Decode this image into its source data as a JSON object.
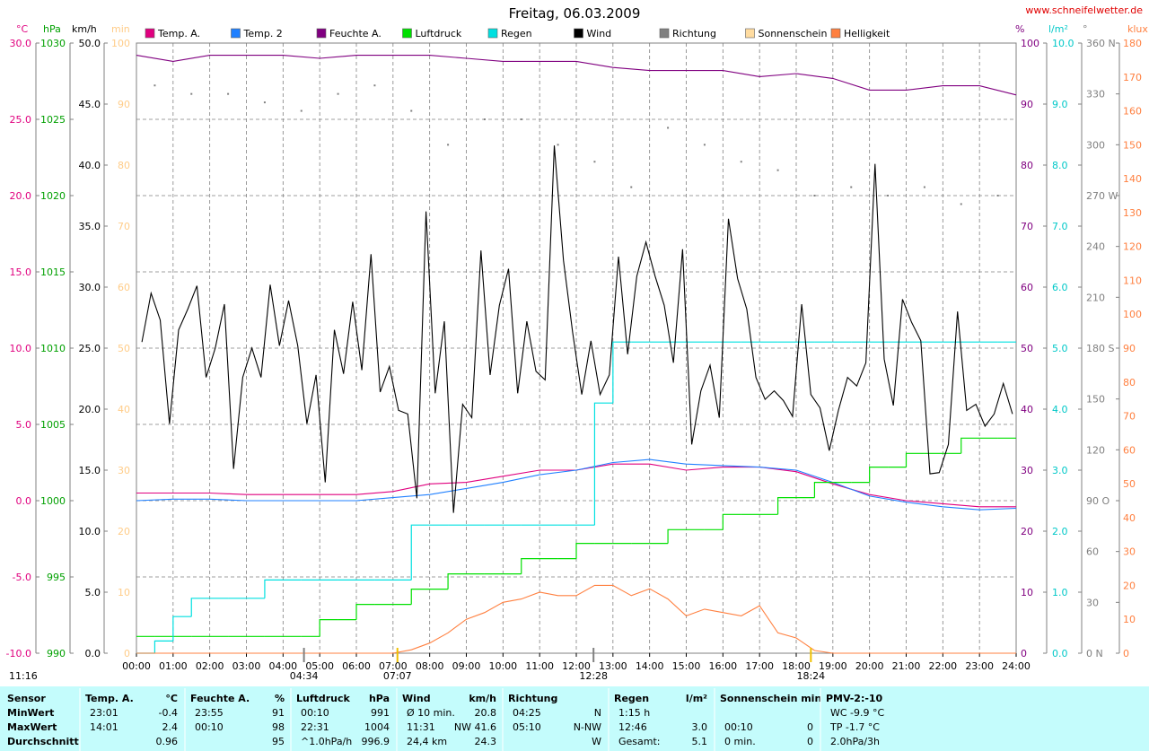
{
  "chart_data": {
    "type": "line",
    "title": "Freitag, 06.03.2009",
    "site": "www.schneifelwetter.de",
    "footnote": "11:16",
    "grid": true,
    "xlim": [
      0,
      24
    ],
    "xticks": [
      {
        "value": 0,
        "label": "00:00"
      },
      {
        "value": 1,
        "label": "01:00"
      },
      {
        "value": 2,
        "label": "02:00"
      },
      {
        "value": 3,
        "label": "03:00"
      },
      {
        "value": 4,
        "label": "04:00"
      },
      {
        "value": 5,
        "label": "05:00"
      },
      {
        "value": 6,
        "label": "06:00"
      },
      {
        "value": 7,
        "label": "07:00"
      },
      {
        "value": 8,
        "label": "08:00"
      },
      {
        "value": 9,
        "label": "09:00"
      },
      {
        "value": 10,
        "label": "10:00"
      },
      {
        "value": 11,
        "label": "11:00"
      },
      {
        "value": 12,
        "label": "12:00"
      },
      {
        "value": 13,
        "label": "13:00"
      },
      {
        "value": 14,
        "label": "14:00"
      },
      {
        "value": 15,
        "label": "15:00"
      },
      {
        "value": 16,
        "label": "16:00"
      },
      {
        "value": 17,
        "label": "17:00"
      },
      {
        "value": 18,
        "label": "18:00"
      },
      {
        "value": 19,
        "label": "19:00"
      },
      {
        "value": 20,
        "label": "20:00"
      },
      {
        "value": 21,
        "label": "21:00"
      },
      {
        "value": 22,
        "label": "22:00"
      },
      {
        "value": 23,
        "label": "23:00"
      },
      {
        "value": 24,
        "label": "24:00"
      }
    ],
    "x": [
      0,
      0.5,
      1,
      1.5,
      2,
      2.5,
      3,
      3.5,
      4,
      4.5,
      5,
      5.5,
      6,
      6.5,
      7,
      7.5,
      8,
      8.5,
      9,
      9.5,
      10,
      10.5,
      11,
      11.5,
      12,
      12.5,
      13,
      13.5,
      14,
      14.5,
      15,
      15.5,
      16,
      16.5,
      17,
      17.5,
      18,
      18.5,
      19,
      19.5,
      20,
      20.5,
      21,
      21.5,
      22,
      22.5,
      23,
      23.5,
      24
    ],
    "axes": [
      {
        "label": "°C",
        "color": "#e0007f",
        "lim": [
          -10,
          30
        ],
        "ticks": [
          {
            "value": -10,
            "label": "-10.0"
          },
          {
            "value": -5,
            "label": "-5.0"
          },
          {
            "value": 0,
            "label": "0.0"
          },
          {
            "value": 5,
            "label": "5.0"
          },
          {
            "value": 10,
            "label": "10.0"
          },
          {
            "value": 15,
            "label": "15.0"
          },
          {
            "value": 20,
            "label": "20.0"
          },
          {
            "value": 25,
            "label": "25.0"
          },
          {
            "value": 30,
            "label": "30.0"
          }
        ]
      },
      {
        "label": "hPa",
        "color": "#00a000",
        "lim": [
          990,
          1030
        ],
        "ticks": [
          990,
          995,
          1000,
          1005,
          1010,
          1015,
          1020,
          1025,
          1030
        ]
      },
      {
        "label": "km/h",
        "color": "#000000",
        "lim": [
          0,
          50
        ],
        "ticks": [
          {
            "value": 0,
            "label": "0.0"
          },
          {
            "value": 5,
            "label": "5.0"
          },
          {
            "value": 10,
            "label": "10.0"
          },
          {
            "value": 15,
            "label": "15.0"
          },
          {
            "value": 20,
            "label": "20.0"
          },
          {
            "value": 25,
            "label": "25.0"
          },
          {
            "value": 30,
            "label": "30.0"
          },
          {
            "value": 35,
            "label": "35.0"
          },
          {
            "value": 40,
            "label": "40.0"
          },
          {
            "value": 45,
            "label": "45.0"
          },
          {
            "value": 50,
            "label": "50.0"
          }
        ]
      },
      {
        "label": "min",
        "color": "#ffcc88",
        "lim": [
          0,
          100
        ],
        "ticks": [
          0,
          10,
          20,
          30,
          40,
          50,
          60,
          70,
          80,
          90,
          100
        ]
      },
      {
        "label": "%",
        "color": "#800080",
        "lim": [
          0,
          100
        ],
        "ticks": [
          0,
          10,
          20,
          30,
          40,
          50,
          60,
          70,
          80,
          90,
          100
        ]
      },
      {
        "label": "l/m²",
        "color": "#00c8c8",
        "lim": [
          0,
          10
        ],
        "ticks": [
          {
            "value": 0,
            "label": "0.0"
          },
          {
            "value": 1,
            "label": "1.0"
          },
          {
            "value": 2,
            "label": "2.0"
          },
          {
            "value": 3,
            "label": "3.0"
          },
          {
            "value": 4,
            "label": "4.0"
          },
          {
            "value": 5,
            "label": "5.0"
          },
          {
            "value": 6,
            "label": "6.0"
          },
          {
            "value": 7,
            "label": "7.0"
          },
          {
            "value": 8,
            "label": "8.0"
          },
          {
            "value": 9,
            "label": "9.0"
          },
          {
            "value": 10,
            "label": "10.0"
          }
        ]
      },
      {
        "label": "°",
        "color": "#808080",
        "lim": [
          0,
          360
        ],
        "ticks": [
          {
            "value": 0,
            "label": "0 N"
          },
          30,
          60,
          {
            "value": 90,
            "label": "90 O"
          },
          120,
          150,
          {
            "value": 180,
            "label": "180 S"
          },
          210,
          240,
          {
            "value": 270,
            "label": "270 W"
          },
          300,
          330,
          {
            "value": 360,
            "label": "360 N"
          }
        ]
      },
      {
        "label": "klux",
        "color": "#ff8040",
        "lim": [
          0,
          180
        ],
        "ticks": [
          0,
          10,
          20,
          30,
          40,
          50,
          60,
          70,
          80,
          90,
          100,
          110,
          120,
          130,
          140,
          150,
          160,
          170,
          180
        ]
      }
    ],
    "series": [
      {
        "name": "Temp. A.",
        "color": "#e0007f",
        "axis": 0,
        "x": [
          0,
          1,
          2,
          3,
          4,
          5,
          6,
          7,
          8,
          9,
          10,
          11,
          12,
          13,
          14,
          15,
          16,
          17,
          18,
          19,
          20,
          21,
          22,
          23,
          24
        ],
        "values": [
          0.5,
          0.5,
          0.5,
          0.4,
          0.4,
          0.4,
          0.4,
          0.6,
          1.1,
          1.2,
          1.6,
          2.0,
          2.0,
          2.4,
          2.4,
          2.0,
          2.2,
          2.2,
          1.9,
          1.1,
          0.4,
          0.0,
          -0.2,
          -0.4,
          -0.4
        ]
      },
      {
        "name": "Temp. 2",
        "color": "#2080ff",
        "axis": 0,
        "x": [
          0,
          1,
          2,
          3,
          4,
          5,
          6,
          7,
          8,
          9,
          10,
          11,
          12,
          13,
          14,
          15,
          16,
          17,
          18,
          19,
          20,
          21,
          22,
          23,
          24
        ],
        "values": [
          0,
          0.1,
          0.1,
          0,
          0,
          0,
          0,
          0.2,
          0.4,
          0.8,
          1.2,
          1.7,
          2.0,
          2.5,
          2.7,
          2.4,
          2.3,
          2.2,
          2.0,
          1.2,
          0.3,
          -0.1,
          -0.4,
          -0.6,
          -0.5
        ]
      },
      {
        "name": "Feuchte A.",
        "color": "#800080",
        "axis": 4,
        "x": [
          0,
          1,
          2,
          3,
          4,
          5,
          6,
          7,
          8,
          9,
          10,
          11,
          12,
          13,
          14,
          15,
          16,
          17,
          18,
          19,
          20,
          21,
          22,
          23,
          24
        ],
        "values": [
          98,
          97,
          98,
          98,
          98,
          97.5,
          98,
          98,
          98,
          97.5,
          97,
          97,
          97,
          96,
          95.5,
          95.5,
          95.5,
          94.5,
          95,
          94.2,
          92.3,
          92.3,
          93,
          93,
          91.5
        ]
      },
      {
        "name": "Luftdruck",
        "color": "#00e000",
        "axis": 1,
        "style": "step",
        "values": [
          991.1,
          991.1,
          991.1,
          991.1,
          991.1,
          991.1,
          991.1,
          991.1,
          991.1,
          991.1,
          992.2,
          992.2,
          993.2,
          993.2,
          993.2,
          994.2,
          994.2,
          995.2,
          995.2,
          995.2,
          995.2,
          996.2,
          996.2,
          996.2,
          997.2,
          997.2,
          997.2,
          997.2,
          997.2,
          998.1,
          998.1,
          998.1,
          999.1,
          999.1,
          999.1,
          1000.2,
          1000.2,
          1001.2,
          1001.2,
          1001.2,
          1002.2,
          1002.2,
          1003.1,
          1003.1,
          1003.1,
          1004.1,
          1004.1,
          1004.1,
          1004.1
        ]
      },
      {
        "name": "Regen",
        "color": "#00e0e0",
        "axis": 5,
        "style": "step",
        "values": [
          0,
          0.2,
          0.6,
          0.9,
          0.9,
          0.9,
          0.9,
          1.2,
          1.2,
          1.2,
          1.2,
          1.2,
          1.2,
          1.2,
          1.2,
          2.1,
          2.1,
          2.1,
          2.1,
          2.1,
          2.1,
          2.1,
          2.1,
          2.1,
          2.1,
          4.1,
          5.1,
          5.1,
          5.1,
          5.1,
          5.1,
          5.1,
          5.1,
          5.1,
          5.1,
          5.1,
          5.1,
          5.1,
          5.1,
          5.1,
          5.1,
          5.1,
          5.1,
          5.1,
          5.1,
          5.1,
          5.1,
          5.1,
          5.1
        ]
      },
      {
        "name": "Wind",
        "color": "#000000",
        "axis": 2,
        "x": [
          0.15,
          0.4,
          0.65,
          0.9,
          1.15,
          1.4,
          1.65,
          1.9,
          2.15,
          2.4,
          2.65,
          2.9,
          3.15,
          3.4,
          3.65,
          3.9,
          4.15,
          4.4,
          4.65,
          4.9,
          5.15,
          5.4,
          5.65,
          5.9,
          6.15,
          6.4,
          6.65,
          6.9,
          7.15,
          7.4,
          7.65,
          7.9,
          8.15,
          8.4,
          8.65,
          8.9,
          9.15,
          9.4,
          9.65,
          9.9,
          10.15,
          10.4,
          10.65,
          10.9,
          11.15,
          11.4,
          11.65,
          11.9,
          12.15,
          12.4,
          12.65,
          12.9,
          13.15,
          13.4,
          13.65,
          13.9,
          14.15,
          14.4,
          14.65,
          14.9,
          15.15,
          15.4,
          15.65,
          15.9,
          16.15,
          16.4,
          16.65,
          16.9,
          17.15,
          17.4,
          17.65,
          17.9,
          18.15,
          18.4,
          18.65,
          18.9,
          19.15,
          19.4,
          19.65,
          19.9,
          20.15,
          20.4,
          20.65,
          20.9,
          21.15,
          21.4,
          21.65,
          21.9,
          22.15,
          22.4,
          22.65,
          22.9,
          23.15,
          23.4,
          23.65,
          23.9
        ],
        "values": [
          25.5,
          29.5,
          27.3,
          18.8,
          26.5,
          28.2,
          30.1,
          22.6,
          25.0,
          28.6,
          15.1,
          22.6,
          25.0,
          22.6,
          30.2,
          25.2,
          28.9,
          25.2,
          18.8,
          22.8,
          14.0,
          26.5,
          22.9,
          28.8,
          23.2,
          32.7,
          21.4,
          23.5,
          19.9,
          19.6,
          12.7,
          36.2,
          21.3,
          27.2,
          11.5,
          20.4,
          19.3,
          33.0,
          22.8,
          28.5,
          31.5,
          21.3,
          27.2,
          23.1,
          22.4,
          41.6,
          32.2,
          26.3,
          21.2,
          25.6,
          21.2,
          22.8,
          32.5,
          24.5,
          30.9,
          33.7,
          30.9,
          28.5,
          23.8,
          33.1,
          17.1,
          21.5,
          23.6,
          19.3,
          35.6,
          30.7,
          28.2,
          22.6,
          20.8,
          21.5,
          20.7,
          19.4,
          28.6,
          21.2,
          20.1,
          16.6,
          19.9,
          22.6,
          21.9,
          23.8,
          40.1,
          24.1,
          20.3,
          29.0,
          27.1,
          25.6,
          14.7,
          14.8,
          17.1,
          28.0,
          19.9,
          20.4,
          18.6,
          19.6,
          22.1,
          19.6
        ]
      },
      {
        "name": "Richtung",
        "color": "#808080",
        "axis": 6,
        "style": "dots",
        "x": [
          0.5,
          1.5,
          2.5,
          3.5,
          4.5,
          5.5,
          6.5,
          7.5,
          8.5,
          9.5,
          10.5,
          11.5,
          12.5,
          13.5,
          14.5,
          15.5,
          16.5,
          17.5,
          18.5,
          19.5,
          20.5,
          21.5,
          22.5,
          23.5
        ],
        "values": [
          335,
          330,
          330,
          325,
          320,
          330,
          335,
          320,
          300,
          315,
          315,
          300,
          290,
          275,
          310,
          300,
          290,
          285,
          270,
          275,
          270,
          275,
          265,
          270
        ]
      },
      {
        "name": "Sonnenschein",
        "color": "#ffdca0",
        "axis": 3
      },
      {
        "name": "Helligkeit",
        "color": "#ff8040",
        "axis": 7,
        "values": [
          0,
          0,
          0,
          0,
          0,
          0,
          0,
          0,
          0,
          0,
          0,
          0,
          0,
          0,
          0,
          1,
          3,
          6,
          10,
          12,
          15,
          16,
          18,
          17,
          17,
          20,
          20,
          17,
          19,
          16,
          11,
          13,
          12,
          11,
          14,
          6,
          4.5,
          0.8,
          0,
          0,
          0,
          0,
          0,
          0,
          0,
          0,
          0,
          0,
          0
        ]
      }
    ],
    "markers": [
      {
        "time": 4.57,
        "label": "04:34",
        "color": "#808080"
      },
      {
        "time": 7.12,
        "label": "07:07",
        "color": "#f0c000"
      },
      {
        "time": 12.47,
        "label": "12:28",
        "color": "#808080"
      },
      {
        "time": 18.4,
        "label": "18:24",
        "color": "#f0c000"
      }
    ]
  },
  "table": {
    "header": [
      {
        "l": "Sensor"
      },
      {
        "l": "Temp. A.",
        "r": "°C"
      },
      {
        "l": "Feuchte A.",
        "r": "%"
      },
      {
        "l": "Luftdruck",
        "r": "hPa"
      },
      {
        "l": "Wind",
        "r": "km/h"
      },
      {
        "l": "Richtung"
      },
      {
        "l": "Regen",
        "r": "l/m²"
      },
      {
        "l": "Sonnenschein min"
      },
      {
        "l": "PMV-2:-10"
      }
    ],
    "rows": [
      [
        {
          "l": "MinWert"
        },
        {
          "l": "23:01",
          "r": "-0.4"
        },
        {
          "l": "23:55",
          "r": "91"
        },
        {
          "l": "00:10",
          "r": "991"
        },
        {
          "l": "Ø 10 min.",
          "r": "20.8"
        },
        {
          "l": "04:25",
          "r": "N"
        },
        {
          "l": "1:15 h"
        },
        {},
        {
          "l": "WC -9.9 °C"
        }
      ],
      [
        {
          "l": "MaxWert"
        },
        {
          "l": "14:01",
          "r": "2.4"
        },
        {
          "l": "00:10",
          "r": "98"
        },
        {
          "l": "22:31",
          "r": "1004"
        },
        {
          "l": "11:31",
          "r": "NW 41.6"
        },
        {
          "l": "05:10",
          "r": "N-NW"
        },
        {
          "l": "12:46",
          "r": "3.0"
        },
        {
          "l": "00:10",
          "r": "0"
        },
        {
          "l": "TP -1.7 °C"
        }
      ],
      [
        {
          "l": "Durchschnitt"
        },
        {
          "r": "0.96"
        },
        {
          "r": "95"
        },
        {
          "l": "^1.0hPa/h",
          "r": "996.9"
        },
        {
          "l": "24,4 km",
          "r": "24.3"
        },
        {
          "r": "W"
        },
        {
          "l": "Gesamt:",
          "r": "5.1"
        },
        {
          "l": "0 min.",
          "r": "0"
        },
        {
          "l": "2.0hPa/3h"
        }
      ]
    ]
  }
}
